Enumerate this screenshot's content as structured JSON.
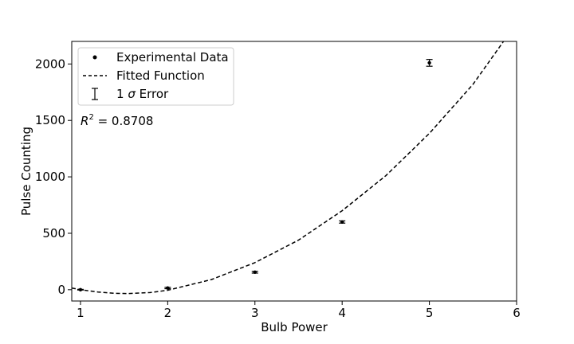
{
  "chart_data": {
    "type": "scatter",
    "title": "",
    "xlabel": "Bulb Power",
    "ylabel": "Pulse Counting",
    "xlim": [
      0.9,
      6.0
    ],
    "ylim": [
      -100,
      2200
    ],
    "xticks": [
      1,
      2,
      3,
      4,
      5,
      6
    ],
    "yticks": [
      0,
      500,
      1000,
      1500,
      2000
    ],
    "grid": false,
    "legend_position": "top-left",
    "series": [
      {
        "name": "Experimental Data",
        "kind": "points_with_errorbars",
        "x": [
          1,
          2,
          3,
          4,
          5
        ],
        "y": [
          0,
          15,
          155,
          600,
          2010
        ],
        "yerr": [
          3,
          6,
          8,
          10,
          30
        ],
        "color": "#000000"
      },
      {
        "name": "Fitted Function",
        "kind": "dashed_line",
        "x": [
          0.9,
          1.0,
          1.2,
          1.4,
          1.55,
          1.8,
          2.0,
          2.5,
          3.0,
          3.5,
          4.0,
          4.5,
          5.0,
          5.5,
          5.85
        ],
        "y": [
          15,
          0,
          -20,
          -32,
          -34,
          -25,
          -5,
          90,
          240,
          440,
          700,
          1010,
          1385,
          1820,
          2200
        ],
        "color": "#000000"
      }
    ],
    "legend": [
      {
        "label": "Experimental Data",
        "marker": "dot"
      },
      {
        "label": "Fitted Function",
        "marker": "dashed-line"
      },
      {
        "label_prefix": "1 ",
        "label_symbol": "σ",
        "label_suffix": " Error",
        "marker": "errorbar"
      }
    ],
    "annotations": [
      {
        "base": "R",
        "sup": "2",
        "text": " = 0.8708"
      }
    ]
  }
}
